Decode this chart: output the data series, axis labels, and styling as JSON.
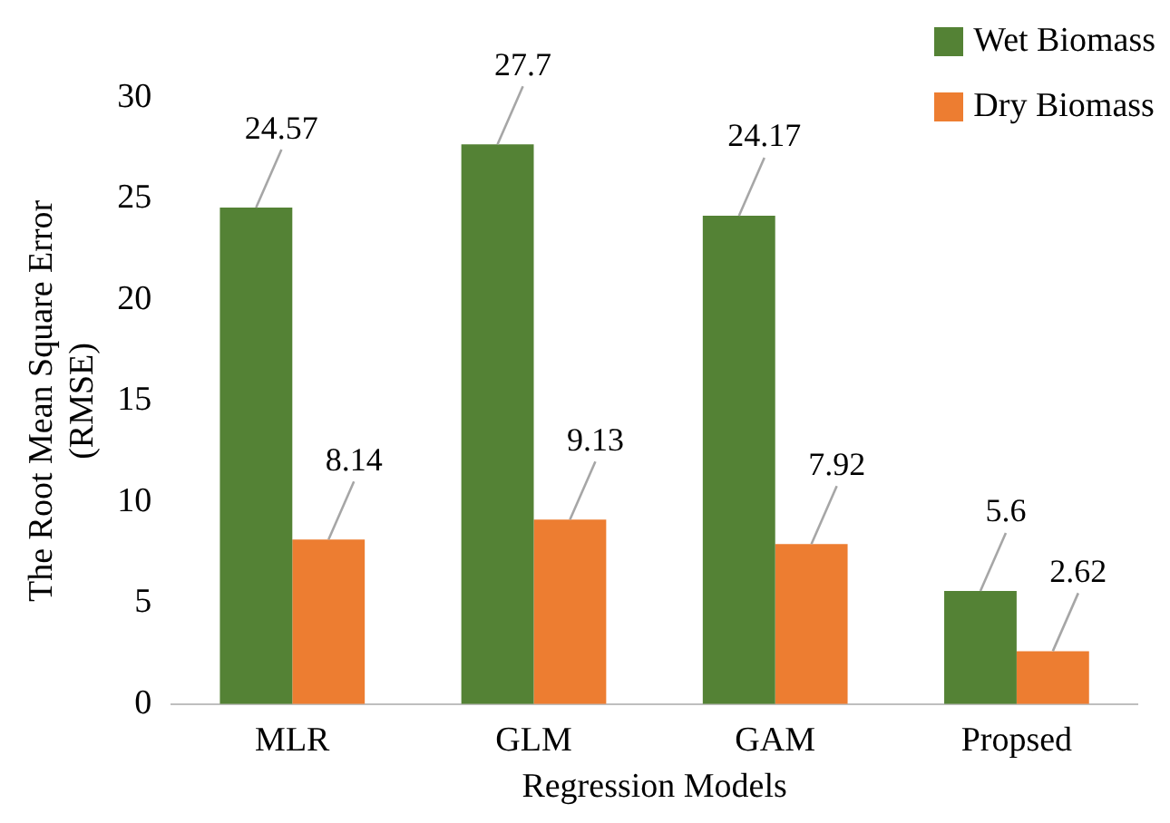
{
  "chart_data": {
    "type": "bar",
    "xlabel": "Regression Models",
    "ylabel": "The Root Mean Square Error (RMSE)",
    "categories": [
      "MLR",
      "GLM",
      "GAM",
      "Propsed"
    ],
    "series": [
      {
        "name": "Wet Biomass",
        "color": "#548235",
        "values": [
          24.57,
          27.7,
          24.17,
          5.6
        ]
      },
      {
        "name": "Dry Biomass",
        "color": "#ed7d31",
        "values": [
          8.14,
          9.13,
          7.92,
          2.62
        ]
      }
    ],
    "ylim": [
      0,
      30
    ],
    "yticks": [
      0,
      5,
      10,
      15,
      20,
      25,
      30
    ],
    "grid": false,
    "legend": "top right",
    "data_labels": true
  }
}
